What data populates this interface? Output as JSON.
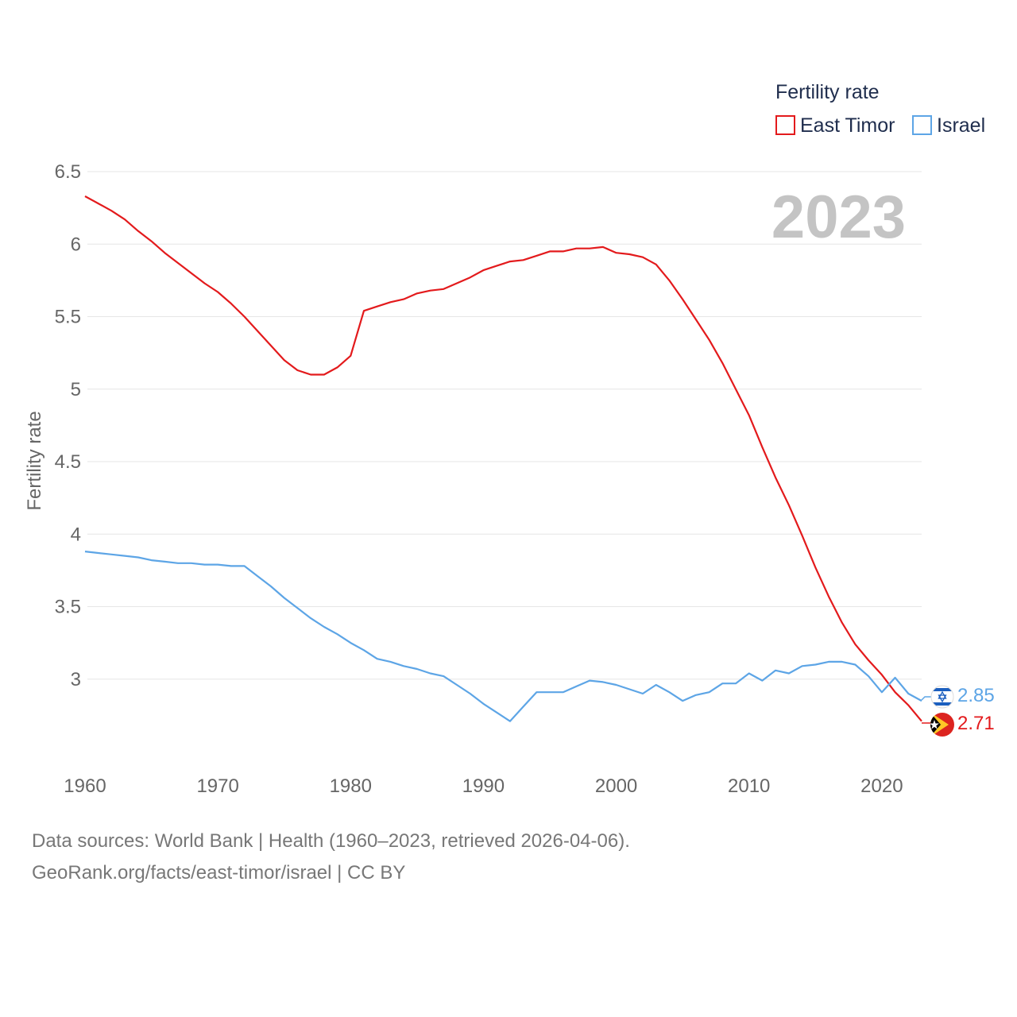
{
  "chart_data": {
    "type": "line",
    "title": "",
    "legend_title": "Fertility rate",
    "legend_position": "top-right",
    "year_label": "2023",
    "xlabel": "",
    "ylabel": "Fertility rate",
    "xlim": [
      1960,
      2023
    ],
    "ylim": [
      2.5,
      6.5
    ],
    "xticks": [
      1960,
      1970,
      1980,
      1990,
      2000,
      2010,
      2020
    ],
    "yticks": [
      3,
      3.5,
      4,
      4.5,
      5,
      5.5,
      6,
      6.5
    ],
    "ytick_labels": [
      "3",
      "3.5",
      "4",
      "4.5",
      "5",
      "5.5",
      "6",
      "6.5"
    ],
    "x": [
      1960,
      1961,
      1962,
      1963,
      1964,
      1965,
      1966,
      1967,
      1968,
      1969,
      1970,
      1971,
      1972,
      1973,
      1974,
      1975,
      1976,
      1977,
      1978,
      1979,
      1980,
      1981,
      1982,
      1983,
      1984,
      1985,
      1986,
      1987,
      1988,
      1989,
      1990,
      1991,
      1992,
      1993,
      1994,
      1995,
      1996,
      1997,
      1998,
      1999,
      2000,
      2001,
      2002,
      2003,
      2004,
      2005,
      2006,
      2007,
      2008,
      2009,
      2010,
      2011,
      2012,
      2013,
      2014,
      2015,
      2016,
      2017,
      2018,
      2019,
      2020,
      2021,
      2022,
      2023
    ],
    "series": [
      {
        "name": "East Timor",
        "color": "#e31a1c",
        "end_label": "2.71",
        "values": [
          6.33,
          6.28,
          6.23,
          6.17,
          6.09,
          6.02,
          5.94,
          5.87,
          5.8,
          5.73,
          5.67,
          5.59,
          5.5,
          5.4,
          5.3,
          5.2,
          5.13,
          5.1,
          5.1,
          5.15,
          5.23,
          5.54,
          5.57,
          5.6,
          5.62,
          5.66,
          5.68,
          5.69,
          5.73,
          5.77,
          5.82,
          5.85,
          5.88,
          5.89,
          5.92,
          5.95,
          5.95,
          5.97,
          5.97,
          5.98,
          5.94,
          5.93,
          5.91,
          5.86,
          5.75,
          5.62,
          5.48,
          5.34,
          5.18,
          5.0,
          4.82,
          4.6,
          4.39,
          4.2,
          3.99,
          3.77,
          3.57,
          3.39,
          3.24,
          3.13,
          3.03,
          2.91,
          2.82,
          2.71
        ]
      },
      {
        "name": "Israel",
        "color": "#5da5e6",
        "end_label": "2.85",
        "values": [
          3.88,
          3.87,
          3.86,
          3.85,
          3.84,
          3.82,
          3.81,
          3.8,
          3.8,
          3.79,
          3.79,
          3.78,
          3.78,
          3.71,
          3.64,
          3.56,
          3.49,
          3.42,
          3.36,
          3.31,
          3.25,
          3.2,
          3.14,
          3.12,
          3.09,
          3.07,
          3.04,
          3.02,
          2.96,
          2.9,
          2.83,
          2.77,
          2.71,
          2.81,
          2.91,
          2.91,
          2.91,
          2.95,
          2.99,
          2.98,
          2.96,
          2.93,
          2.9,
          2.96,
          2.91,
          2.85,
          2.89,
          2.91,
          2.97,
          2.97,
          3.04,
          2.99,
          3.06,
          3.04,
          3.09,
          3.1,
          3.12,
          3.12,
          3.1,
          3.02,
          2.91,
          3.01,
          2.9,
          2.85
        ]
      }
    ]
  },
  "footer": {
    "line1": "Data sources: World Bank | Health (1960–2023, retrieved 2026-04-06).",
    "line2": "GeoRank.org/facts/east-timor/israel | CC BY"
  }
}
